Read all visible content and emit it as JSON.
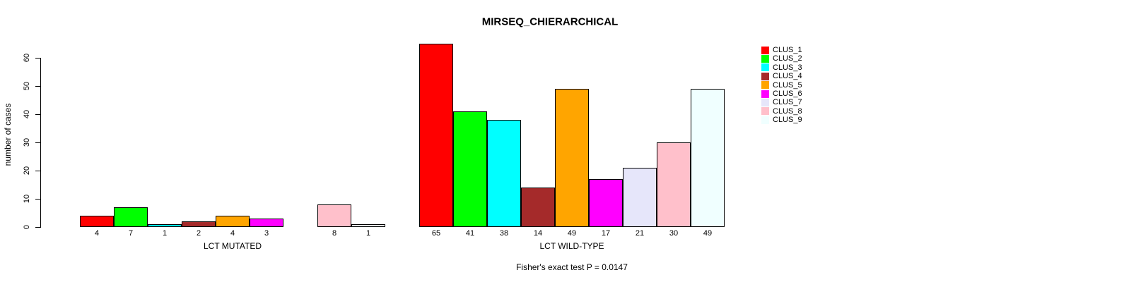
{
  "title": "MIRSEQ_CHIERARCHICAL",
  "footnote": "Fisher's exact test P = 0.0147",
  "y_axis": {
    "label": "number of cases",
    "ticks": [
      0,
      10,
      20,
      30,
      40,
      50,
      60
    ]
  },
  "legend": {
    "entries": [
      {
        "label": "CLUS_1",
        "color": "#FF0000"
      },
      {
        "label": "CLUS_2",
        "color": "#00FF00"
      },
      {
        "label": "CLUS_3",
        "color": "#00FFFF"
      },
      {
        "label": "CLUS_4",
        "color": "#A52A2A"
      },
      {
        "label": "CLUS_5",
        "color": "#FFA500"
      },
      {
        "label": "CLUS_6",
        "color": "#FF00FF"
      },
      {
        "label": "CLUS_7",
        "color": "#E6E6FA"
      },
      {
        "label": "CLUS_8",
        "color": "#FFC0CB"
      },
      {
        "label": "CLUS_9",
        "color": "#F0FFFF"
      }
    ]
  },
  "chart_data": [
    {
      "type": "bar",
      "title": "MIRSEQ_CHIERARCHICAL",
      "xlabel": "LCT MUTATED",
      "ylabel": "number of cases",
      "categories": [
        "CLUS_1",
        "CLUS_2",
        "CLUS_3",
        "CLUS_4",
        "CLUS_5",
        "CLUS_6",
        "CLUS_7",
        "CLUS_8",
        "CLUS_9"
      ],
      "values": [
        4,
        7,
        1,
        2,
        4,
        3,
        0,
        8,
        1
      ],
      "colors": [
        "#FF0000",
        "#00FF00",
        "#00FFFF",
        "#A52A2A",
        "#FFA500",
        "#FF00FF",
        "#E6E6FA",
        "#FFC0CB",
        "#F0FFFF"
      ],
      "ylim": [
        0,
        60
      ],
      "yticks": [
        0,
        10,
        20,
        30,
        40,
        50,
        60
      ],
      "legend_position": "right-outside",
      "grid": false
    },
    {
      "type": "bar",
      "title": "MIRSEQ_CHIERARCHICAL",
      "xlabel": "LCT WILD-TYPE",
      "ylabel": "number of cases",
      "categories": [
        "CLUS_1",
        "CLUS_2",
        "CLUS_3",
        "CLUS_4",
        "CLUS_5",
        "CLUS_6",
        "CLUS_7",
        "CLUS_8",
        "CLUS_9"
      ],
      "values": [
        65,
        41,
        38,
        14,
        49,
        17,
        21,
        30,
        49
      ],
      "colors": [
        "#FF0000",
        "#00FF00",
        "#00FFFF",
        "#A52A2A",
        "#FFA500",
        "#FF00FF",
        "#E6E6FA",
        "#FFC0CB",
        "#F0FFFF"
      ],
      "ylim": [
        0,
        60
      ],
      "yticks": [
        0,
        10,
        20,
        30,
        40,
        50,
        60
      ],
      "legend_position": "right-outside",
      "grid": false
    }
  ]
}
